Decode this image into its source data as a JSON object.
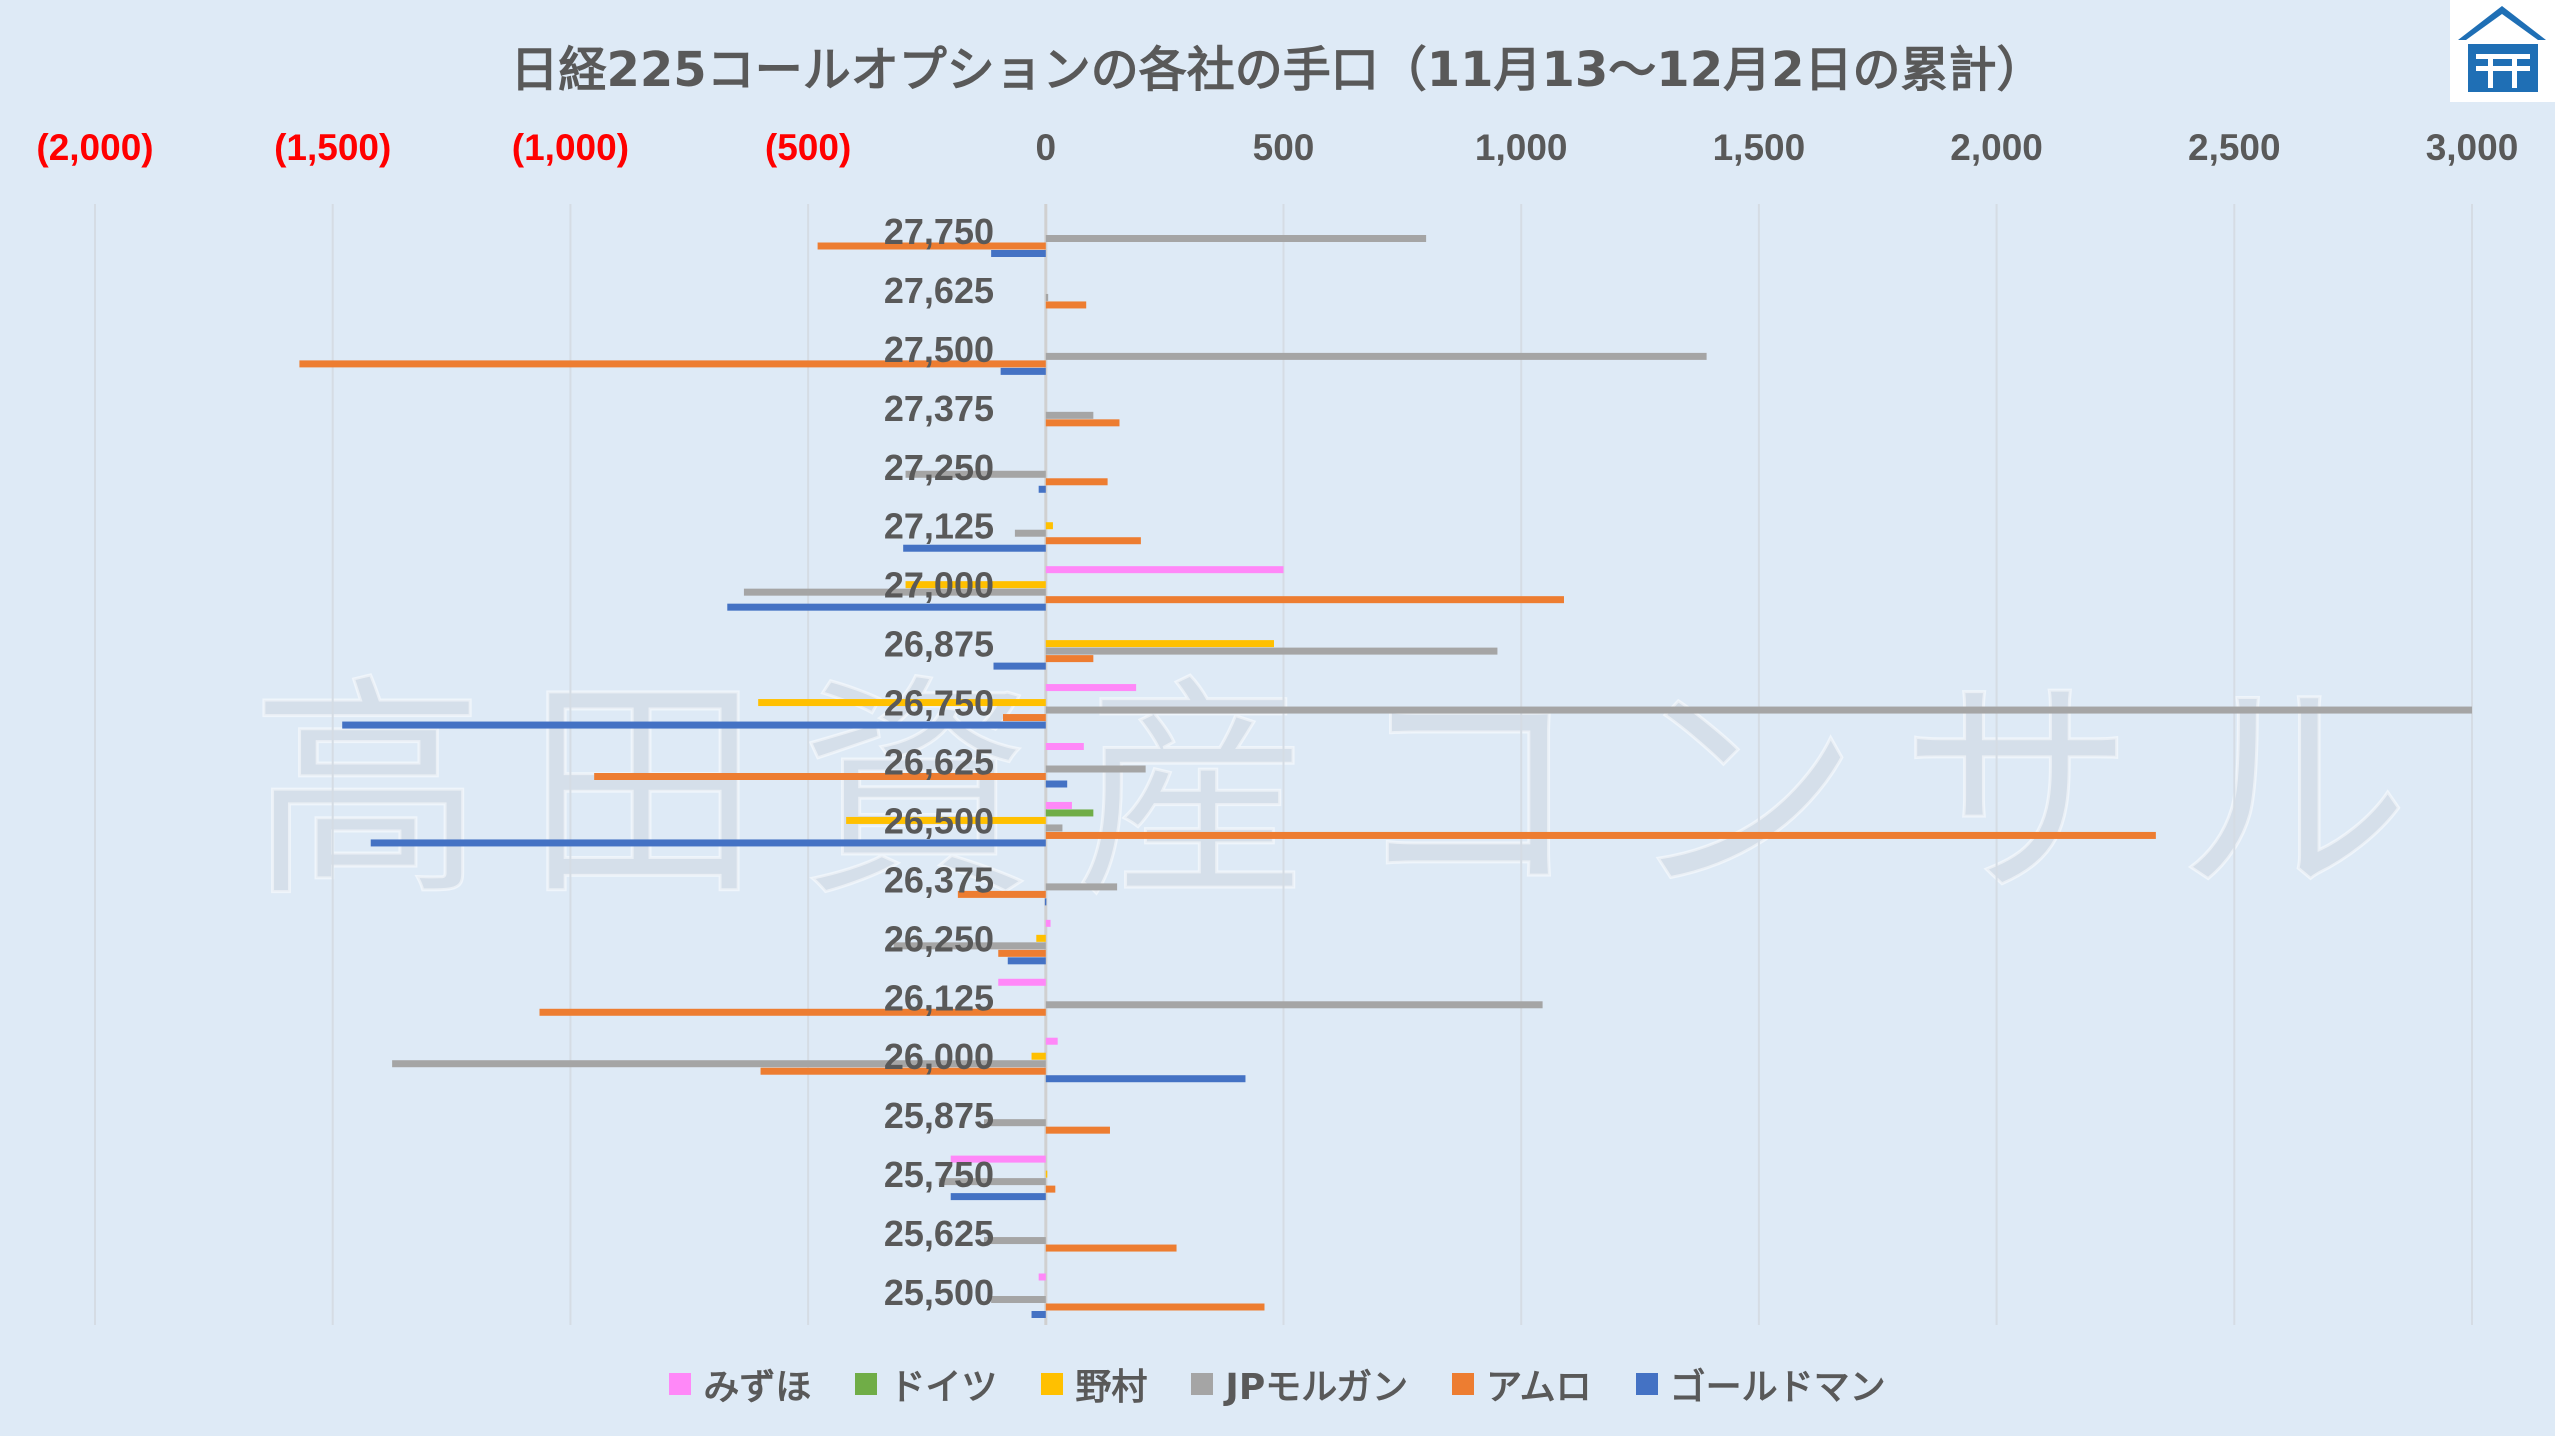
{
  "chart_data": {
    "type": "bar",
    "orientation": "horizontal",
    "title": "日経225コールオプションの各社の手口（11月13〜12月2日の累計）",
    "xlim": [
      -2000,
      3000
    ],
    "xticks": [
      -2000,
      -1500,
      -1000,
      -500,
      0,
      500,
      1000,
      1500,
      2000,
      2500,
      3000
    ],
    "xtick_labels": [
      "(2,000)",
      "(1,500)",
      "(1,000)",
      "(500)",
      "0",
      "500",
      "1,000",
      "1,500",
      "2,000",
      "2,500",
      "3,000"
    ],
    "xaxis_position": "top",
    "grid": true,
    "legend_position": "bottom",
    "categories": [
      "27,750",
      "27,625",
      "27,500",
      "27,375",
      "27,250",
      "27,125",
      "27,000",
      "26,875",
      "26,750",
      "26,625",
      "26,500",
      "26,375",
      "26,250",
      "26,125",
      "26,000",
      "25,875",
      "25,750",
      "25,625",
      "25,500"
    ],
    "series": [
      {
        "name": "みずほ",
        "color": "#ff88f8",
        "values": [
          0,
          0,
          0,
          0,
          0,
          0,
          500,
          0,
          190,
          80,
          55,
          0,
          10,
          -100,
          25,
          0,
          -200,
          0,
          -15
        ]
      },
      {
        "name": "ドイツ",
        "color": "#70ad47",
        "values": [
          0,
          0,
          0,
          0,
          0,
          0,
          0,
          0,
          0,
          0,
          100,
          0,
          0,
          0,
          0,
          0,
          0,
          0,
          0
        ]
      },
      {
        "name": "野村",
        "color": "#ffc000",
        "values": [
          0,
          0,
          0,
          0,
          0,
          15,
          -295,
          480,
          -605,
          0,
          -420,
          0,
          -20,
          0,
          -30,
          0,
          3,
          0,
          0
        ]
      },
      {
        "name": "JPモルガン",
        "color": "#a5a5a5",
        "values": [
          800,
          5,
          1390,
          100,
          -295,
          -65,
          -635,
          950,
          3000,
          210,
          35,
          150,
          -320,
          1045,
          -1375,
          -130,
          -225,
          -130,
          -115
        ]
      },
      {
        "name": "アムロ",
        "color": "#ed7d31",
        "values": [
          -480,
          85,
          -1570,
          155,
          130,
          200,
          1090,
          100,
          -90,
          -950,
          2335,
          -185,
          -100,
          -1065,
          -600,
          135,
          20,
          275,
          460
        ]
      },
      {
        "name": "ゴールドマン",
        "color": "#4472c4",
        "values": [
          -115,
          0,
          -95,
          0,
          -15,
          -300,
          -670,
          -110,
          -1480,
          45,
          -1420,
          -2,
          -80,
          0,
          420,
          0,
          -200,
          0,
          -30
        ]
      }
    ]
  },
  "watermark": "高田資産コンサル",
  "colors": {
    "background": "#deeaf6",
    "negative_tick": "#ff0000",
    "text": "#595959",
    "logo": "#1f6fb5"
  }
}
